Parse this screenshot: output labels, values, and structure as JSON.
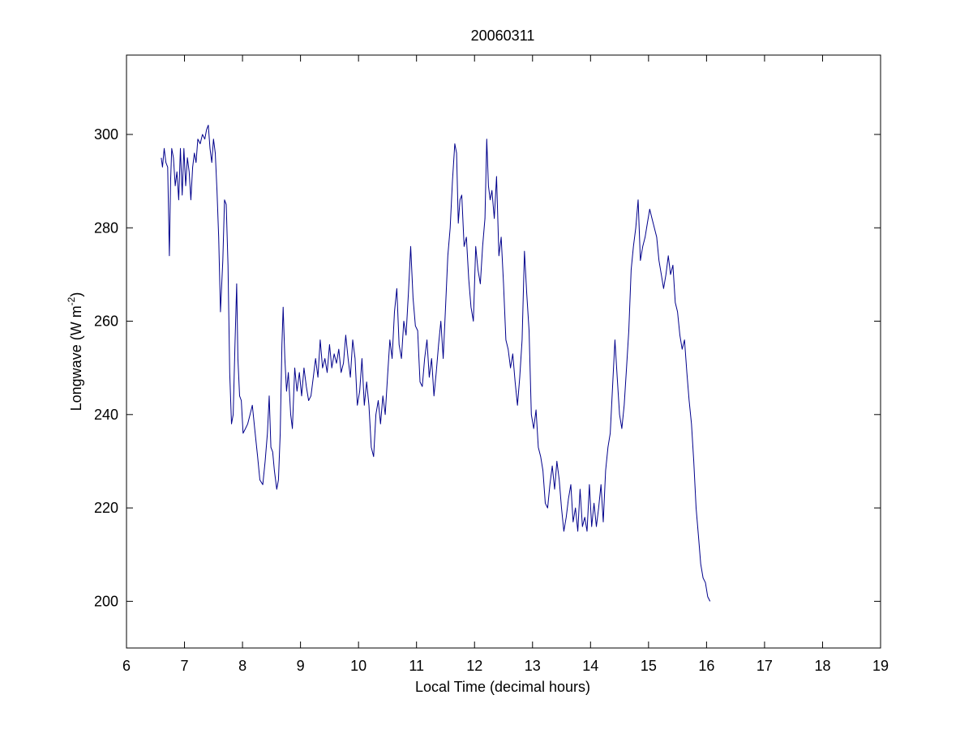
{
  "chart_data": {
    "type": "line",
    "title": "20060311",
    "xlabel": "Local Time (decimal hours)",
    "ylabel_main": "Longwave (W m",
    "ylabel_sup": "-2",
    "ylabel_close": ")",
    "xlim": [
      6,
      19
    ],
    "ylim": [
      190,
      317
    ],
    "xticks": [
      6,
      7,
      8,
      9,
      10,
      11,
      12,
      13,
      14,
      15,
      16,
      17,
      18,
      19
    ],
    "xtick_labels": [
      "6",
      "7",
      "8",
      "9",
      "10",
      "11",
      "12",
      "13",
      "14",
      "15",
      "16",
      "17",
      "18",
      "19"
    ],
    "yticks": [
      200,
      220,
      240,
      260,
      280,
      300
    ],
    "ytick_labels": [
      "200",
      "220",
      "240",
      "260",
      "280",
      "300"
    ],
    "grid": false,
    "series": [
      {
        "color": "#00008b",
        "points": [
          [
            6.6,
            295
          ],
          [
            6.62,
            293
          ],
          [
            6.65,
            297
          ],
          [
            6.68,
            294
          ],
          [
            6.71,
            293
          ],
          [
            6.74,
            274
          ],
          [
            6.76,
            290
          ],
          [
            6.78,
            297
          ],
          [
            6.81,
            295
          ],
          [
            6.84,
            289
          ],
          [
            6.87,
            292
          ],
          [
            6.9,
            286
          ],
          [
            6.93,
            297
          ],
          [
            6.96,
            287
          ],
          [
            6.99,
            297
          ],
          [
            7.02,
            289
          ],
          [
            7.05,
            295
          ],
          [
            7.08,
            292
          ],
          [
            7.11,
            286
          ],
          [
            7.14,
            293
          ],
          [
            7.17,
            296
          ],
          [
            7.2,
            294
          ],
          [
            7.23,
            299
          ],
          [
            7.27,
            298
          ],
          [
            7.31,
            300
          ],
          [
            7.35,
            299
          ],
          [
            7.38,
            301
          ],
          [
            7.41,
            302
          ],
          [
            7.44,
            297
          ],
          [
            7.47,
            294
          ],
          [
            7.5,
            299
          ],
          [
            7.53,
            296
          ],
          [
            7.56,
            288
          ],
          [
            7.59,
            278
          ],
          [
            7.62,
            262
          ],
          [
            7.66,
            273
          ],
          [
            7.69,
            286
          ],
          [
            7.72,
            285
          ],
          [
            7.75,
            272
          ],
          [
            7.78,
            249
          ],
          [
            7.81,
            238
          ],
          [
            7.84,
            240
          ],
          [
            7.87,
            255
          ],
          [
            7.9,
            268
          ],
          [
            7.92,
            252
          ],
          [
            7.95,
            244
          ],
          [
            7.98,
            243
          ],
          [
            8.01,
            236
          ],
          [
            8.05,
            237
          ],
          [
            8.09,
            238
          ],
          [
            8.13,
            240
          ],
          [
            8.17,
            242
          ],
          [
            8.21,
            237
          ],
          [
            8.26,
            231
          ],
          [
            8.3,
            226
          ],
          [
            8.35,
            225
          ],
          [
            8.39,
            230
          ],
          [
            8.43,
            236
          ],
          [
            8.46,
            244
          ],
          [
            8.49,
            233
          ],
          [
            8.52,
            232
          ],
          [
            8.55,
            228
          ],
          [
            8.59,
            224
          ],
          [
            8.62,
            226
          ],
          [
            8.65,
            236
          ],
          [
            8.68,
            255
          ],
          [
            8.7,
            263
          ],
          [
            8.73,
            252
          ],
          [
            8.76,
            245
          ],
          [
            8.79,
            249
          ],
          [
            8.83,
            240
          ],
          [
            8.86,
            237
          ],
          [
            8.9,
            250
          ],
          [
            8.94,
            245
          ],
          [
            8.98,
            249
          ],
          [
            9.02,
            244
          ],
          [
            9.06,
            250
          ],
          [
            9.1,
            246
          ],
          [
            9.14,
            243
          ],
          [
            9.18,
            244
          ],
          [
            9.22,
            248
          ],
          [
            9.26,
            252
          ],
          [
            9.3,
            248
          ],
          [
            9.34,
            256
          ],
          [
            9.38,
            250
          ],
          [
            9.42,
            252
          ],
          [
            9.46,
            249
          ],
          [
            9.5,
            255
          ],
          [
            9.54,
            250
          ],
          [
            9.58,
            253
          ],
          [
            9.62,
            251
          ],
          [
            9.66,
            254
          ],
          [
            9.7,
            249
          ],
          [
            9.74,
            251
          ],
          [
            9.78,
            257
          ],
          [
            9.82,
            252
          ],
          [
            9.86,
            248
          ],
          [
            9.9,
            256
          ],
          [
            9.94,
            252
          ],
          [
            9.98,
            242
          ],
          [
            10.02,
            245
          ],
          [
            10.06,
            252
          ],
          [
            10.1,
            242
          ],
          [
            10.14,
            247
          ],
          [
            10.18,
            242
          ],
          [
            10.22,
            233
          ],
          [
            10.26,
            231
          ],
          [
            10.3,
            240
          ],
          [
            10.34,
            243
          ],
          [
            10.38,
            238
          ],
          [
            10.42,
            244
          ],
          [
            10.46,
            240
          ],
          [
            10.5,
            248
          ],
          [
            10.54,
            256
          ],
          [
            10.58,
            252
          ],
          [
            10.62,
            262
          ],
          [
            10.66,
            267
          ],
          [
            10.7,
            255
          ],
          [
            10.74,
            252
          ],
          [
            10.78,
            260
          ],
          [
            10.82,
            257
          ],
          [
            10.86,
            266
          ],
          [
            10.9,
            276
          ],
          [
            10.94,
            265
          ],
          [
            10.98,
            259
          ],
          [
            11.02,
            258
          ],
          [
            11.06,
            247
          ],
          [
            11.1,
            246
          ],
          [
            11.14,
            252
          ],
          [
            11.18,
            256
          ],
          [
            11.22,
            248
          ],
          [
            11.26,
            252
          ],
          [
            11.3,
            244
          ],
          [
            11.34,
            249
          ],
          [
            11.38,
            255
          ],
          [
            11.42,
            260
          ],
          [
            11.46,
            252
          ],
          [
            11.5,
            263
          ],
          [
            11.54,
            274
          ],
          [
            11.58,
            280
          ],
          [
            11.62,
            290
          ],
          [
            11.66,
            298
          ],
          [
            11.69,
            296
          ],
          [
            11.72,
            281
          ],
          [
            11.75,
            286
          ],
          [
            11.78,
            287
          ],
          [
            11.82,
            276
          ],
          [
            11.86,
            278
          ],
          [
            11.9,
            269
          ],
          [
            11.94,
            263
          ],
          [
            11.98,
            260
          ],
          [
            12.02,
            276
          ],
          [
            12.06,
            271
          ],
          [
            12.1,
            268
          ],
          [
            12.14,
            276
          ],
          [
            12.18,
            282
          ],
          [
            12.21,
            299
          ],
          [
            12.24,
            289
          ],
          [
            12.27,
            286
          ],
          [
            12.3,
            288
          ],
          [
            12.34,
            282
          ],
          [
            12.38,
            291
          ],
          [
            12.42,
            274
          ],
          [
            12.46,
            278
          ],
          [
            12.5,
            268
          ],
          [
            12.54,
            256
          ],
          [
            12.58,
            254
          ],
          [
            12.62,
            250
          ],
          [
            12.66,
            253
          ],
          [
            12.7,
            247
          ],
          [
            12.74,
            242
          ],
          [
            12.78,
            248
          ],
          [
            12.82,
            256
          ],
          [
            12.86,
            275
          ],
          [
            12.9,
            266
          ],
          [
            12.94,
            258
          ],
          [
            12.98,
            240
          ],
          [
            13.02,
            237
          ],
          [
            13.06,
            241
          ],
          [
            13.1,
            233
          ],
          [
            13.14,
            231
          ],
          [
            13.18,
            228
          ],
          [
            13.22,
            221
          ],
          [
            13.26,
            220
          ],
          [
            13.3,
            225
          ],
          [
            13.34,
            229
          ],
          [
            13.38,
            224
          ],
          [
            13.42,
            230
          ],
          [
            13.46,
            226
          ],
          [
            13.5,
            220
          ],
          [
            13.54,
            215
          ],
          [
            13.58,
            218
          ],
          [
            13.62,
            222
          ],
          [
            13.66,
            225
          ],
          [
            13.7,
            217
          ],
          [
            13.74,
            220
          ],
          [
            13.78,
            215
          ],
          [
            13.82,
            224
          ],
          [
            13.86,
            216
          ],
          [
            13.9,
            218
          ],
          [
            13.94,
            215
          ],
          [
            13.98,
            225
          ],
          [
            14.02,
            216
          ],
          [
            14.06,
            221
          ],
          [
            14.1,
            216
          ],
          [
            14.14,
            220
          ],
          [
            14.18,
            225
          ],
          [
            14.22,
            217
          ],
          [
            14.26,
            228
          ],
          [
            14.3,
            233
          ],
          [
            14.34,
            236
          ],
          [
            14.38,
            246
          ],
          [
            14.42,
            256
          ],
          [
            14.46,
            248
          ],
          [
            14.5,
            240
          ],
          [
            14.54,
            237
          ],
          [
            14.58,
            242
          ],
          [
            14.62,
            250
          ],
          [
            14.66,
            258
          ],
          [
            14.7,
            271
          ],
          [
            14.74,
            276
          ],
          [
            14.78,
            280
          ],
          [
            14.82,
            286
          ],
          [
            14.86,
            273
          ],
          [
            14.9,
            276
          ],
          [
            14.94,
            278
          ],
          [
            14.98,
            281
          ],
          [
            15.02,
            284
          ],
          [
            15.06,
            282
          ],
          [
            15.1,
            280
          ],
          [
            15.14,
            278
          ],
          [
            15.18,
            273
          ],
          [
            15.22,
            270
          ],
          [
            15.26,
            267
          ],
          [
            15.3,
            270
          ],
          [
            15.34,
            274
          ],
          [
            15.38,
            270
          ],
          [
            15.42,
            272
          ],
          [
            15.46,
            264
          ],
          [
            15.5,
            262
          ],
          [
            15.54,
            257
          ],
          [
            15.58,
            254
          ],
          [
            15.62,
            256
          ],
          [
            15.66,
            249
          ],
          [
            15.7,
            243
          ],
          [
            15.74,
            238
          ],
          [
            15.78,
            230
          ],
          [
            15.82,
            220
          ],
          [
            15.86,
            214
          ],
          [
            15.9,
            208
          ],
          [
            15.94,
            205
          ],
          [
            15.98,
            204
          ],
          [
            16.02,
            201
          ],
          [
            16.06,
            200
          ]
        ]
      }
    ]
  }
}
